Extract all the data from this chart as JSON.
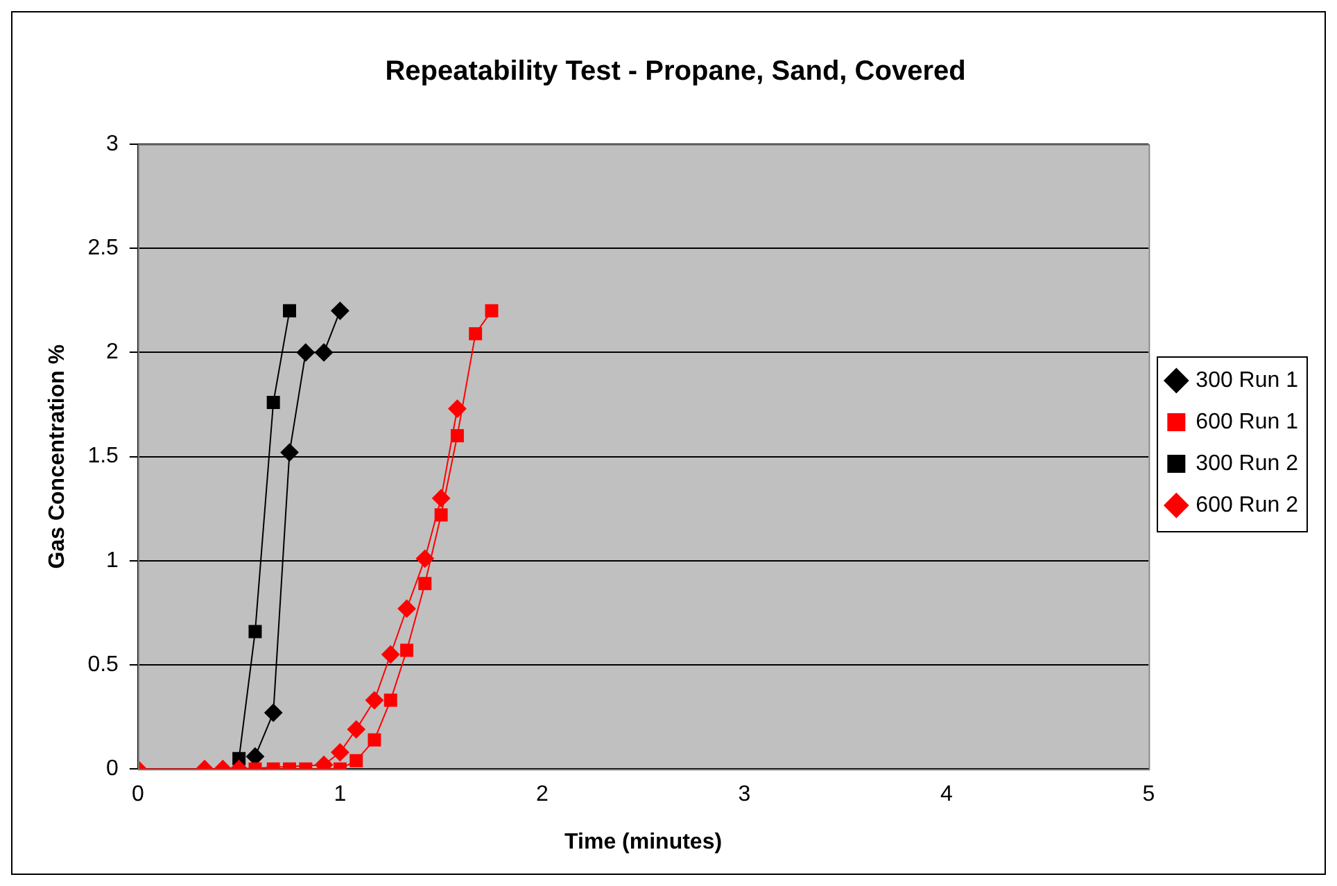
{
  "chart_data": {
    "type": "line",
    "title": "Repeatability Test - Propane, Sand, Covered",
    "xlabel": "Time (minutes)",
    "ylabel": "Gas Concentration %",
    "xlim": [
      0,
      5
    ],
    "xticks": [
      0,
      1,
      2,
      3,
      4,
      5
    ],
    "ylim": [
      0,
      3
    ],
    "yticks": [
      0,
      0.5,
      1,
      1.5,
      2,
      2.5,
      3
    ],
    "grid": "y",
    "legend": "right",
    "series": [
      {
        "name": "300 Run 1",
        "color": "#000000",
        "marker": "diamond",
        "x": [
          0.58,
          0.67,
          0.75,
          0.83,
          0.92,
          1.0
        ],
        "values": [
          0.06,
          0.27,
          1.52,
          2,
          2,
          2.2
        ]
      },
      {
        "name": "600 Run 1",
        "color": "#ff0000",
        "marker": "square",
        "x": [
          0.58,
          0.67,
          0.75,
          0.83,
          0.92,
          1.0,
          1.08,
          1.17,
          1.25,
          1.33,
          1.42,
          1.5,
          1.58,
          1.67,
          1.75
        ],
        "values": [
          0,
          0,
          0,
          0,
          0,
          0,
          0.04,
          0.14,
          0.33,
          0.57,
          0.89,
          1.22,
          1.6,
          2.09,
          2.2
        ]
      },
      {
        "name": "300 Run 2",
        "color": "#000000",
        "marker": "square",
        "x": [
          0.5,
          0.58,
          0.67,
          0.75
        ],
        "values": [
          0.05,
          0.66,
          1.76,
          2.2
        ]
      },
      {
        "name": "600 Run 2",
        "color": "#ff0000",
        "marker": "diamond",
        "x": [
          0,
          0.33,
          0.42,
          0.5,
          0.92,
          1.0,
          1.08,
          1.17,
          1.25,
          1.33,
          1.42,
          1.5,
          1.58
        ],
        "values": [
          0,
          0,
          0,
          0,
          0.02,
          0.08,
          0.19,
          0.33,
          0.55,
          0.77,
          1.01,
          1.3,
          1.73
        ]
      }
    ]
  }
}
